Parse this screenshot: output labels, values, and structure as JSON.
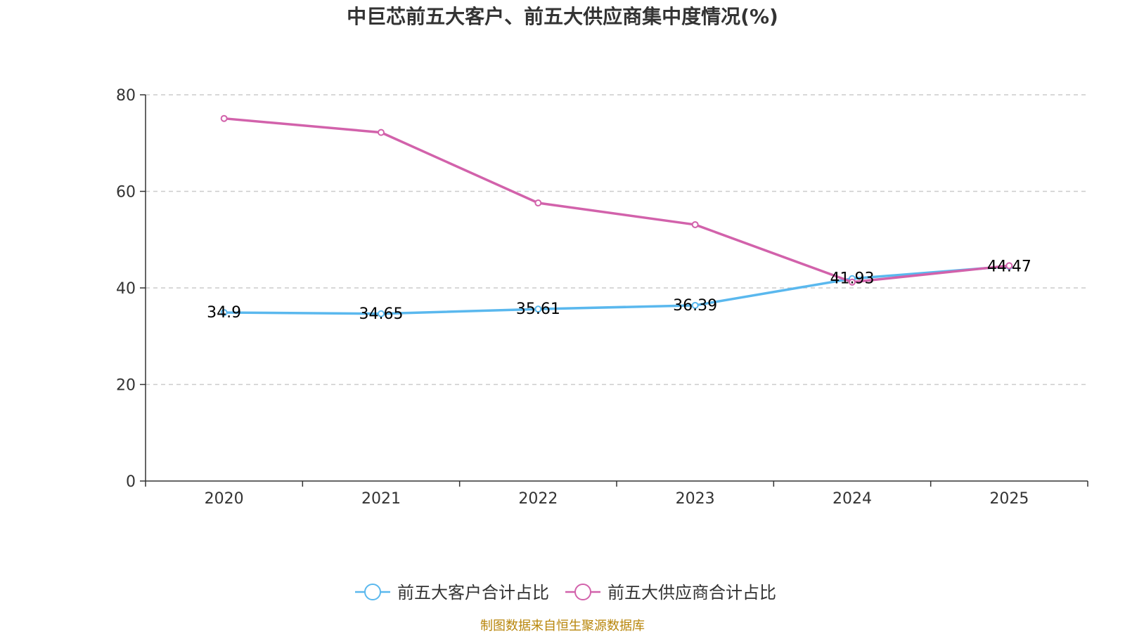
{
  "chart_data": {
    "type": "line",
    "title": "中巨芯前五大客户、前五大供应商集中度情况(%)",
    "categories": [
      "2020",
      "2021",
      "2022",
      "2023",
      "2024",
      "2025"
    ],
    "ylim": [
      0,
      80
    ],
    "yticks": [
      0,
      20,
      40,
      60,
      80
    ],
    "grid": true,
    "legend_position": "bottom",
    "series": [
      {
        "name": "前五大客户合计占比",
        "color": "#5ab8ee",
        "values": [
          34.9,
          34.65,
          35.61,
          36.39,
          41.93,
          44.47
        ],
        "labels": [
          "34.9",
          "34.65",
          "35.61",
          "36.39",
          "41.93",
          "44.47"
        ]
      },
      {
        "name": "前五大供应商合计占比",
        "color": "#d262ab",
        "values": [
          75.1,
          72.2,
          57.6,
          53.1,
          41.2,
          44.6
        ],
        "labels": []
      }
    ],
    "source": "制图数据来自恒生聚源数据库",
    "source_color": "#b8860b"
  }
}
